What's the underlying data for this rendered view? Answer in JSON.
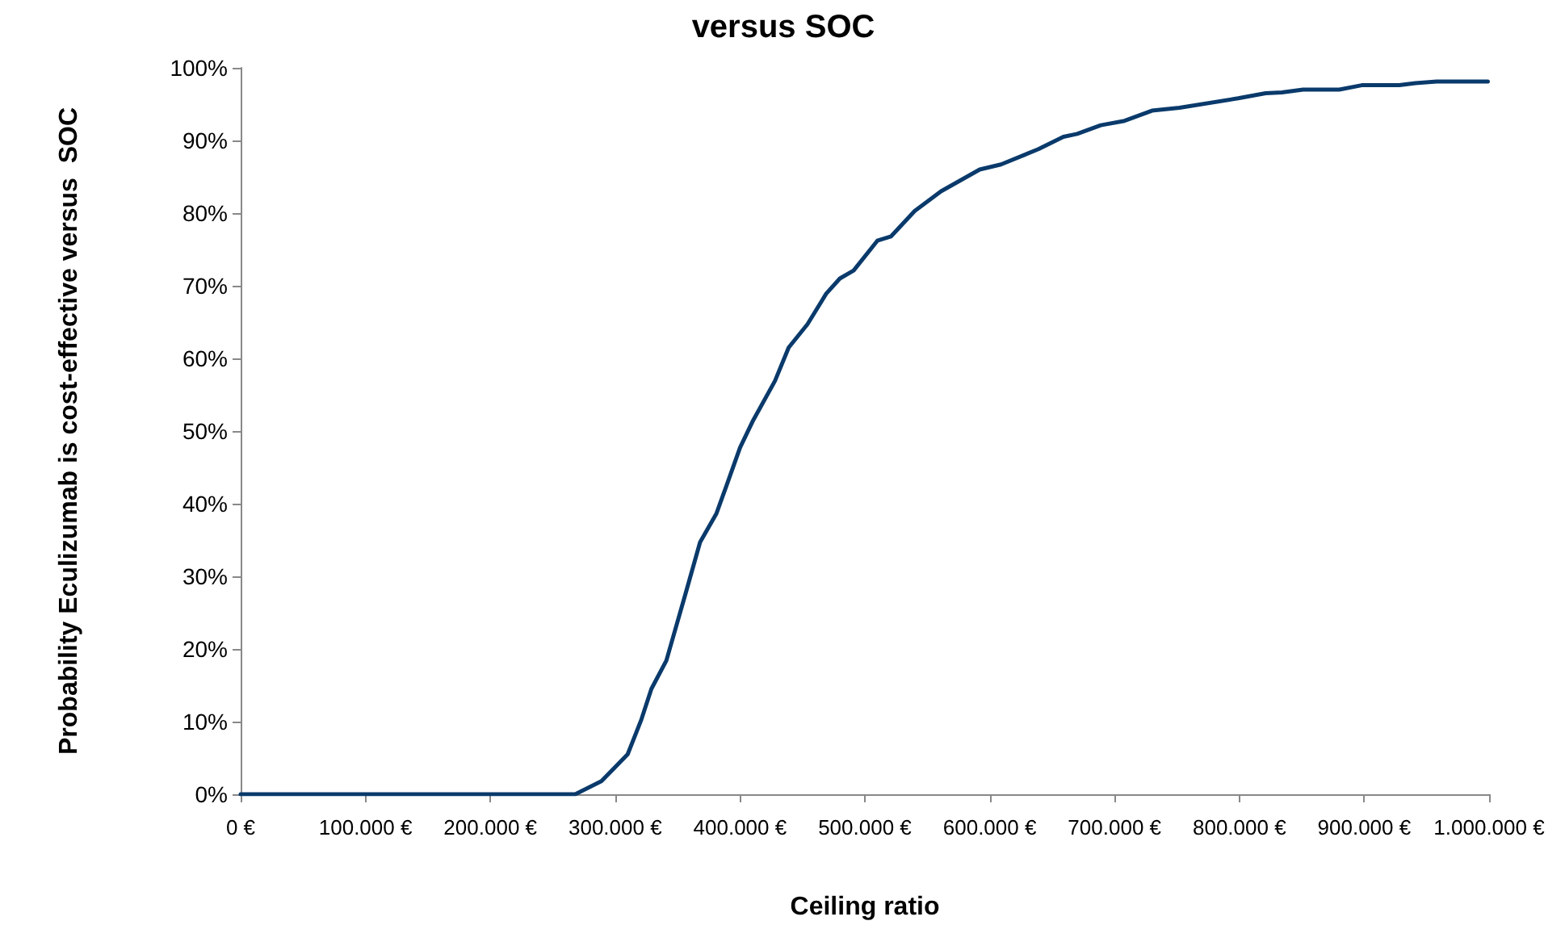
{
  "chart_data": {
    "type": "line",
    "title": "versus SOC",
    "xlabel": "Ceiling ratio",
    "ylabel": "Probability Eculizumab is cost-effective versus  SOC",
    "series": [
      {
        "color": "#0a3a6b",
        "x": [
          0,
          100000,
          200000,
          268000,
          289000,
          310000,
          321000,
          329000,
          341000,
          357000,
          368000,
          381000,
          389000,
          400000,
          410000,
          428000,
          439000,
          454000,
          469000,
          480000,
          491000,
          510000,
          521000,
          540000,
          561000,
          592000,
          609000,
          639000,
          659000,
          670000,
          689000,
          708000,
          730000,
          752000,
          799000,
          821000,
          834000,
          851000,
          880000,
          898000,
          928000,
          941000,
          958000,
          999000
        ],
        "values": [
          0,
          0,
          0,
          0,
          1.8,
          5.5,
          10.3,
          14.5,
          18.4,
          28,
          34.7,
          38.6,
          42.4,
          47.7,
          51.3,
          56.9,
          61.5,
          64.7,
          68.9,
          71,
          72.1,
          76.2,
          76.8,
          80.3,
          83,
          86,
          86.7,
          88.8,
          90.5,
          90.9,
          92.1,
          92.7,
          94.1,
          94.5,
          95.8,
          96.5,
          96.6,
          97,
          97,
          97.6,
          97.6,
          97.9,
          98.1,
          98.1
        ]
      }
    ],
    "xlim": [
      0,
      1000000
    ],
    "xticks": [
      {
        "value": 0,
        "label": "0 €"
      },
      {
        "value": 100000,
        "label": "100.000 €"
      },
      {
        "value": 200000,
        "label": "200.000 €"
      },
      {
        "value": 300000,
        "label": "300.000 €"
      },
      {
        "value": 400000,
        "label": "400.000 €"
      },
      {
        "value": 500000,
        "label": "500.000 €"
      },
      {
        "value": 600000,
        "label": "600.000 €"
      },
      {
        "value": 700000,
        "label": "700.000 €"
      },
      {
        "value": 800000,
        "label": "800.000 €"
      },
      {
        "value": 900000,
        "label": "900.000 €"
      },
      {
        "value": 1000000,
        "label": "1.000.000 €"
      }
    ],
    "ylim": [
      0,
      100
    ],
    "yticks": [
      {
        "value": 0,
        "label": "0%"
      },
      {
        "value": 10,
        "label": "10%"
      },
      {
        "value": 20,
        "label": "20%"
      },
      {
        "value": 30,
        "label": "30%"
      },
      {
        "value": 40,
        "label": "40%"
      },
      {
        "value": 50,
        "label": "50%"
      },
      {
        "value": 60,
        "label": "60%"
      },
      {
        "value": 70,
        "label": "70%"
      },
      {
        "value": 80,
        "label": "80%"
      },
      {
        "value": 90,
        "label": "90%"
      },
      {
        "value": 100,
        "label": "100%"
      }
    ],
    "grid": false,
    "marker": "none",
    "line_style": "solid"
  }
}
